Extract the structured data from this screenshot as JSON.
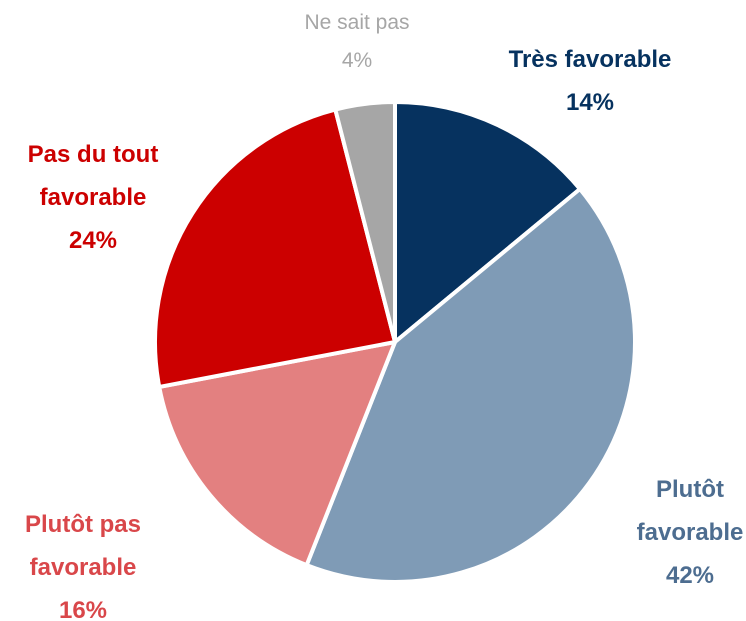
{
  "chart_data": {
    "type": "pie",
    "categories": [
      "Très favorable",
      "Plutôt favorable",
      "Plutôt pas favorable",
      "Pas du tout favorable",
      "Ne sait pas"
    ],
    "values": [
      14,
      42,
      16,
      24,
      4
    ],
    "value_labels": [
      "14%",
      "42%",
      "16%",
      "24%",
      "4%"
    ],
    "colors": [
      "#06325f",
      "#7f9bb6",
      "#e38080",
      "#cc0000",
      "#a6a6a6"
    ],
    "label_colors": [
      "#06325f",
      "#4d6d90",
      "#d9474a",
      "#cc0000",
      "#a6a6a6"
    ]
  }
}
